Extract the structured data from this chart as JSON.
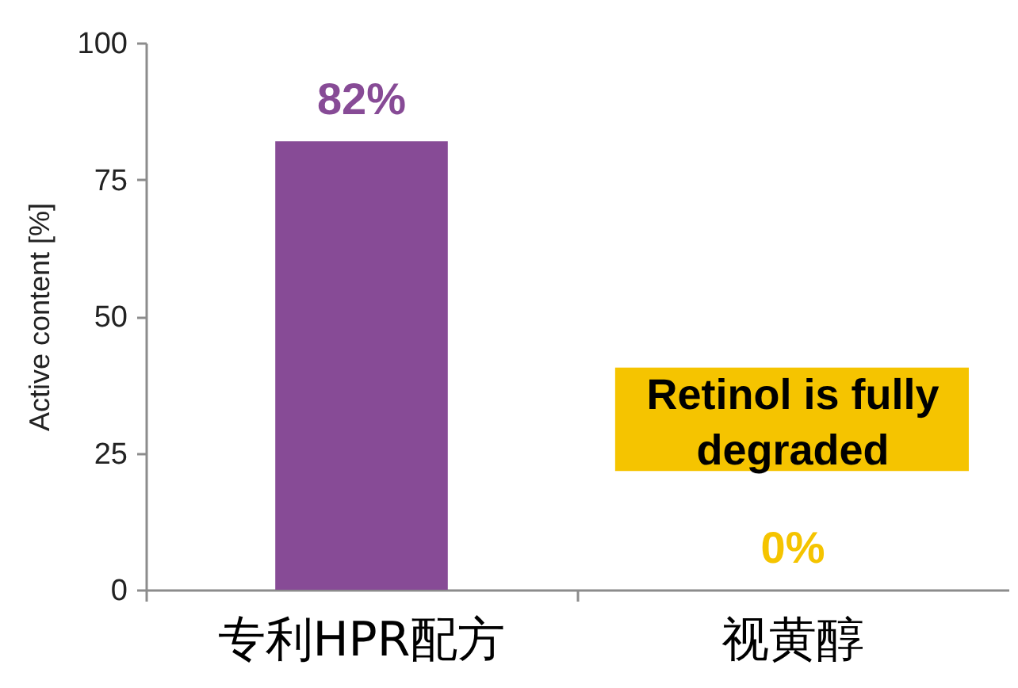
{
  "chart_data": {
    "type": "bar",
    "ylabel": "Active content [%]",
    "categories": [
      "专利HPR配方",
      "视黄醇"
    ],
    "values": [
      82,
      0
    ],
    "colors": [
      "#874b96",
      "#f5c400"
    ],
    "value_labels": [
      "82%",
      "0%"
    ],
    "ylim": [
      0,
      100
    ],
    "yticks": [
      0,
      25,
      50,
      75,
      100
    ],
    "annotations": [
      "Retinol is fully degraded"
    ]
  }
}
